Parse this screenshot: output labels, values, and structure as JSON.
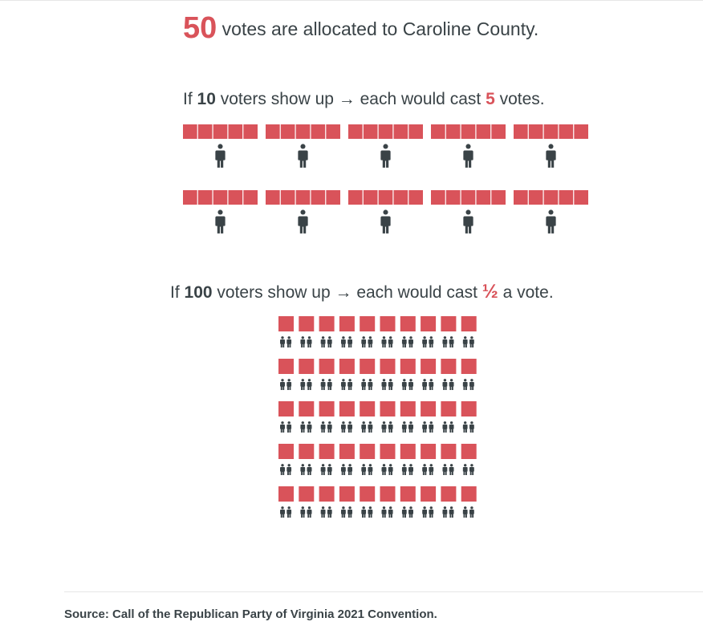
{
  "headline": {
    "number": "50",
    "text": "votes are allocated to Caroline County."
  },
  "scenario_10": {
    "prefix": "If",
    "voters": "10",
    "middle": "voters show up → each would cast",
    "votes": "5",
    "suffix": "votes."
  },
  "scenario_100": {
    "prefix": "If",
    "voters": "100",
    "middle": "voters show up → each would cast",
    "fraction": "½",
    "suffix": "a vote."
  },
  "source": {
    "text": "Source: Call of the Republican Party of Virginia 2021 Convention."
  },
  "graphic": {
    "total_votes": 50,
    "scenario_10_voters": 10,
    "scenario_10_votes_each": 5,
    "scenario_100_voters": 100,
    "scenario_100_votes_each": 0.5,
    "vote_icon": "vote-block",
    "voter_icon": "person-icon"
  },
  "colors": {
    "vote": "#d9535a",
    "person": "#3a4347",
    "text": "#3a4347"
  }
}
